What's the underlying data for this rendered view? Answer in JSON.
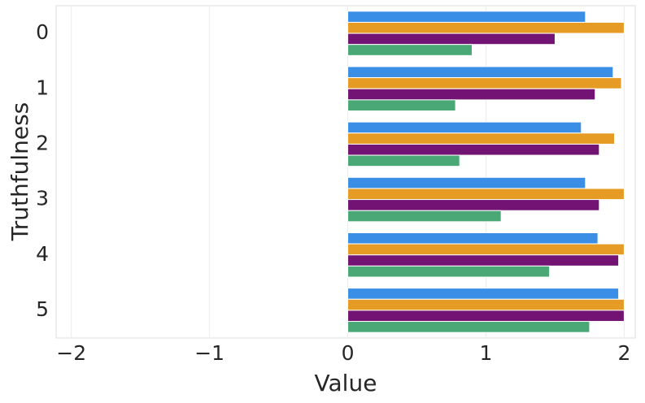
{
  "chart_data": {
    "type": "barh",
    "xlabel": "Value",
    "ylabel": "Truthfulness",
    "categories": [
      "0",
      "1",
      "2",
      "3",
      "4",
      "5"
    ],
    "series": [
      {
        "color": "#3a8ee6",
        "values": [
          1.72,
          1.92,
          1.69,
          1.72,
          1.81,
          1.96
        ]
      },
      {
        "color": "#e69c24",
        "values": [
          2.0,
          1.98,
          1.93,
          2.0,
          2.0,
          2.0
        ]
      },
      {
        "color": "#731373",
        "values": [
          1.5,
          1.79,
          1.82,
          1.82,
          1.96,
          2.0
        ]
      },
      {
        "color": "#4aa876",
        "values": [
          0.9,
          0.78,
          0.81,
          1.11,
          1.46,
          1.75
        ]
      }
    ],
    "xlim": [
      -2.11,
      2.08
    ],
    "xticks": [
      {
        "value": -2,
        "label": "−2"
      },
      {
        "value": -1,
        "label": "−1"
      },
      0,
      1,
      2
    ],
    "grid": true
  }
}
